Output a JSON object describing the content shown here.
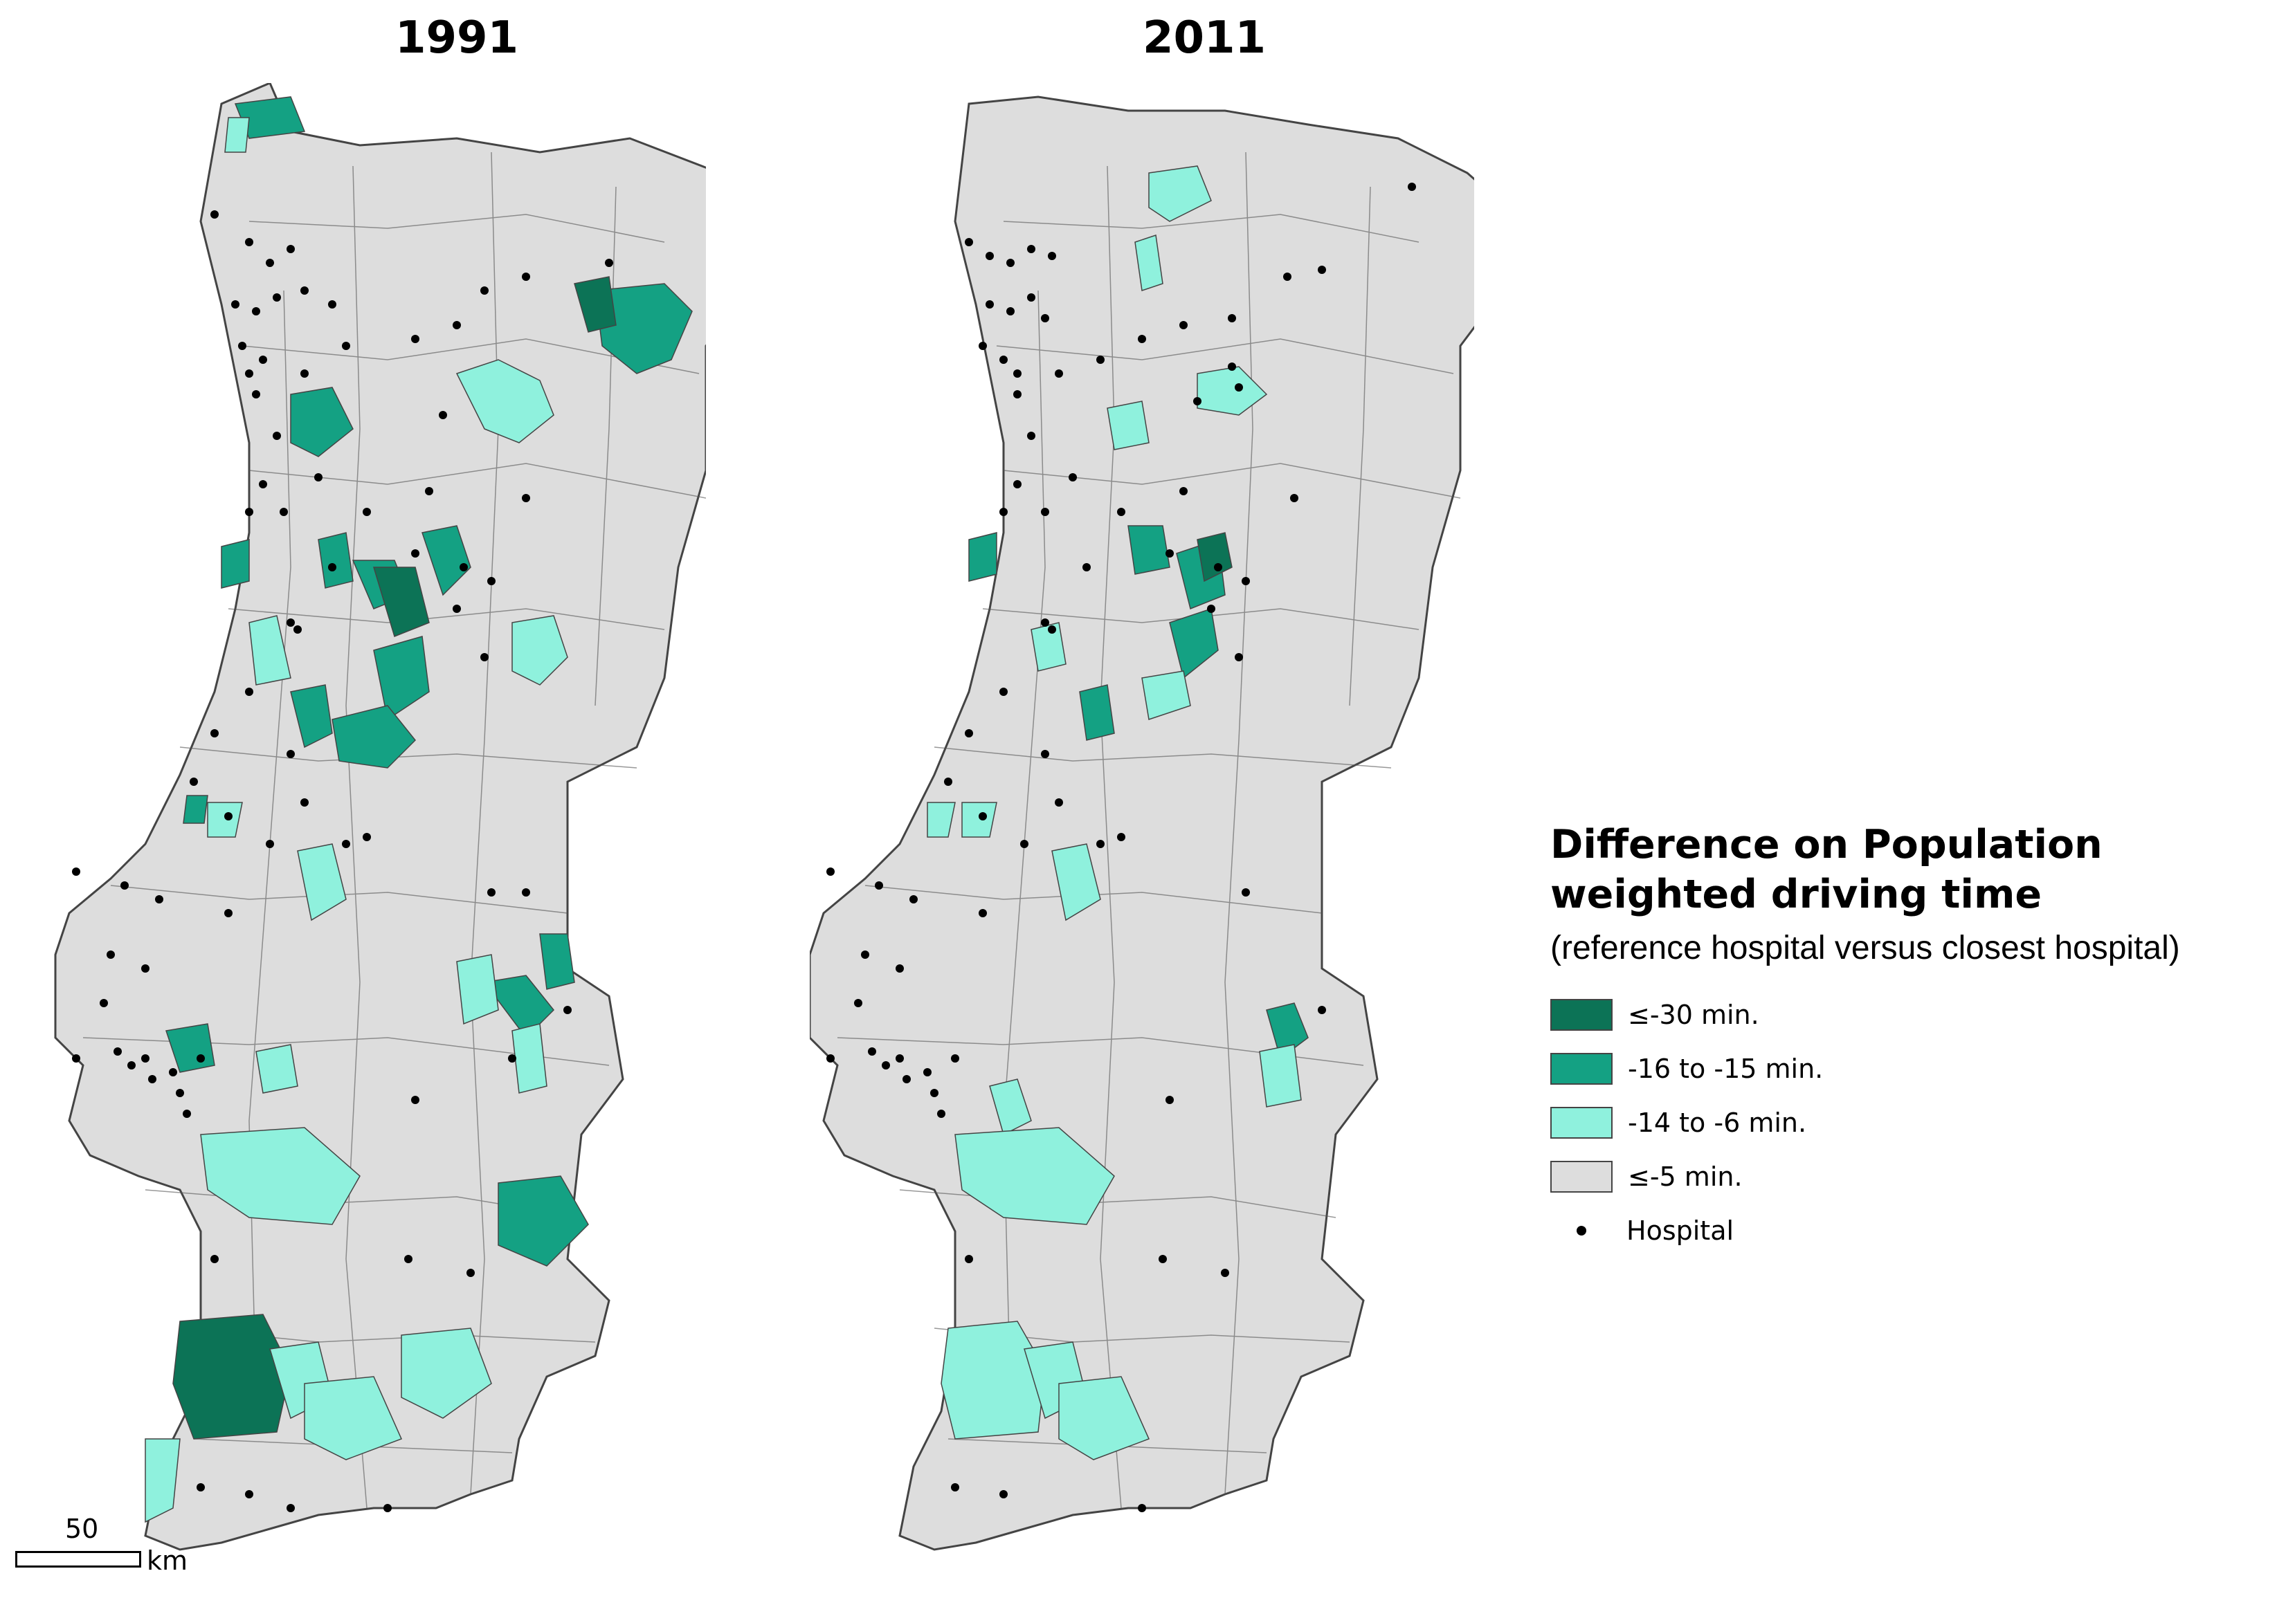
{
  "maps": [
    {
      "title": "1991"
    },
    {
      "title": "2011"
    }
  ],
  "legend": {
    "title": "Difference on Population weighted driving time",
    "subtitle": "(reference hospital versus closest hospital)",
    "classes": [
      {
        "label": "≤-30 min.",
        "color": "#0c7356"
      },
      {
        "label": "-16 to -15 min.",
        "color": "#14a183"
      },
      {
        "label": "-14 to -6 min.",
        "color": "#8ff1dd"
      },
      {
        "label": "≤-5 min.",
        "color": "#dddddd"
      }
    ],
    "hospital_label": "Hospital"
  },
  "scale": {
    "value": "50",
    "unit": "km"
  }
}
